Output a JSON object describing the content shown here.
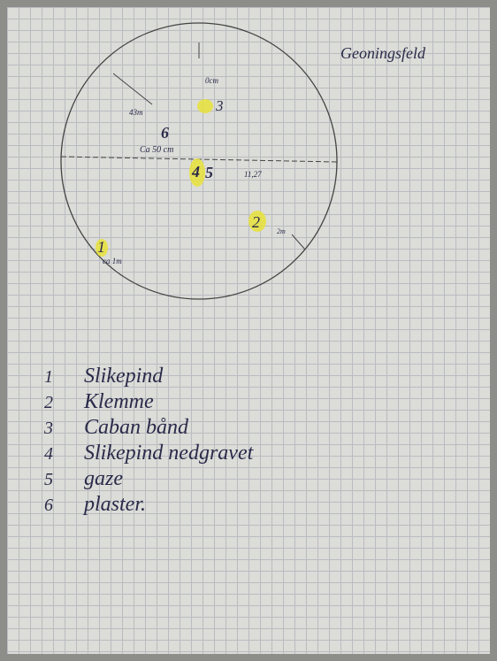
{
  "header": {
    "title": "Geoningsfeld"
  },
  "diagram": {
    "markers": [
      {
        "label": "3"
      },
      {
        "label": "6"
      },
      {
        "label": "4"
      },
      {
        "label": "5"
      },
      {
        "label": "2"
      },
      {
        "label": "1"
      }
    ],
    "annotations": [
      "0cm",
      "43m",
      "Ca 50 cm",
      "11,27",
      "2m",
      "ca 1m"
    ]
  },
  "legend": [
    {
      "number": "1",
      "text": "Slikepind"
    },
    {
      "number": "2",
      "text": "Klemme"
    },
    {
      "number": "3",
      "text": "Caban bånd"
    },
    {
      "number": "4",
      "text": "Slikepind nedgravet"
    },
    {
      "number": "5",
      "text": "gaze"
    },
    {
      "number": "6",
      "text": "plaster."
    }
  ]
}
